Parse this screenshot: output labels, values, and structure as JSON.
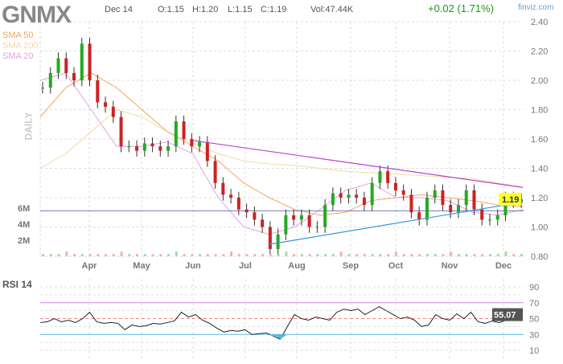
{
  "header": {
    "ticker": "GNMX",
    "date": "Dec 14",
    "open": "O:1.15",
    "high": "H:1.20",
    "low": "L:1.15",
    "close": "C:1.19",
    "volume": "Vol:47.44K",
    "change": "+0.02 (1.71%)",
    "brand": "finviz.com",
    "period": "DAILY"
  },
  "legend": [
    {
      "label": "SMA 50",
      "color": "#f7a35c"
    },
    {
      "label": "SMA 200",
      "color": "#f0d9a8"
    },
    {
      "label": "SMA 20",
      "color": "#e9a0e0"
    }
  ],
  "chart_data": [
    {
      "type": "candlestick",
      "title": "",
      "ylim": [
        0.8,
        2.4
      ],
      "y_ticks": [
        "2.40",
        "2.20",
        "2.00",
        "1.80",
        "1.60",
        "1.40",
        "1.20",
        "1.00",
        "0.80"
      ],
      "x_ticks": [
        "Apr",
        "May",
        "Jun",
        "Jul",
        "Aug",
        "Sep",
        "Oct",
        "Nov",
        "Dec"
      ],
      "volume_ticks": [
        "6M",
        "4M",
        "2M"
      ],
      "last_price": "1.19",
      "closes": [
        1.95,
        2.05,
        2.15,
        2.05,
        2.0,
        2.25,
        2.0,
        1.85,
        1.82,
        1.75,
        1.55,
        1.55,
        1.52,
        1.57,
        1.55,
        1.52,
        1.55,
        1.72,
        1.6,
        1.55,
        1.58,
        1.45,
        1.3,
        1.22,
        1.2,
        1.12,
        1.1,
        1.05,
        1.0,
        0.85,
        0.95,
        1.08,
        1.05,
        1.08,
        1.0,
        1.0,
        1.15,
        1.23,
        1.2,
        1.22,
        1.2,
        1.15,
        1.3,
        1.38,
        1.3,
        1.25,
        1.22,
        1.1,
        1.05,
        1.2,
        1.25,
        1.15,
        1.1,
        1.15,
        1.25,
        1.12,
        1.05,
        1.05,
        1.08,
        1.2,
        1.17,
        1.19
      ],
      "sma50": [
        1.75,
        1.95,
        2.05,
        1.95,
        1.8,
        1.65,
        1.55,
        1.45,
        1.3,
        1.2,
        1.12,
        1.08,
        1.1,
        1.18,
        1.2,
        1.22,
        1.2,
        1.18,
        1.15,
        1.14
      ],
      "sma200": [
        1.4,
        1.5,
        1.65,
        1.8,
        1.75,
        1.65,
        1.57,
        1.5,
        1.45,
        1.43,
        1.42,
        1.4,
        1.38,
        1.37,
        1.36,
        1.35,
        1.34,
        1.33,
        1.3,
        1.27
      ],
      "sma20": [
        2.0,
        2.05,
        1.8,
        1.55,
        1.55,
        1.58,
        1.5,
        1.2,
        1.0,
        0.95,
        1.0,
        1.12,
        1.25,
        1.3,
        1.2,
        1.2,
        1.18,
        1.1,
        1.08,
        1.12
      ],
      "resistance_line": [
        1.59,
        1.27
      ],
      "support_line": [
        0.88,
        1.17
      ],
      "horizontal_line": 1.11
    },
    {
      "type": "line",
      "title": "RSI 14",
      "ylim": [
        0,
        100
      ],
      "y_ticks": [
        "90",
        "70",
        "50",
        "30",
        "10"
      ],
      "last_value": "55.07",
      "values": [
        45,
        46,
        50,
        46,
        48,
        45,
        50,
        58,
        46,
        44,
        45,
        44,
        36,
        42,
        40,
        41,
        44,
        43,
        45,
        47,
        58,
        52,
        55,
        48,
        44,
        38,
        33,
        35,
        34,
        36,
        30,
        31,
        32,
        28,
        24,
        40,
        55,
        50,
        48,
        52,
        50,
        48,
        58,
        62,
        60,
        62,
        55,
        60,
        65,
        60,
        55,
        50,
        52,
        48,
        40,
        42,
        55,
        50,
        48,
        56,
        50,
        58,
        46,
        44,
        47,
        45,
        48,
        56,
        55
      ]
    }
  ]
}
